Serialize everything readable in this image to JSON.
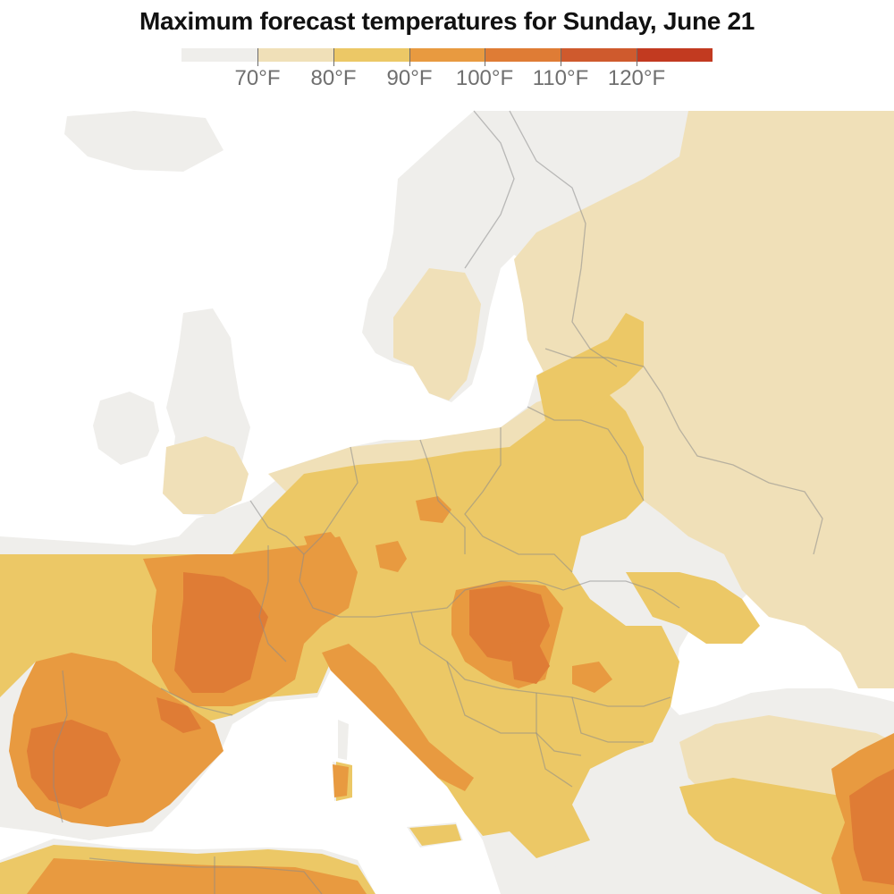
{
  "title": "Maximum forecast temperatures for Sunday, June 21",
  "legend": {
    "bins": [
      {
        "range": "below 70°F",
        "color": "#efeeeb"
      },
      {
        "range": "70–80°F",
        "color": "#f0e0b8"
      },
      {
        "range": "80–90°F",
        "color": "#ecc866"
      },
      {
        "range": "90–100°F",
        "color": "#e89a40"
      },
      {
        "range": "100–110°F",
        "color": "#df7c35"
      },
      {
        "range": "110–120°F",
        "color": "#cf5a2d"
      },
      {
        "range": "120°F and above",
        "color": "#c23a20"
      }
    ],
    "labels": [
      "70°F",
      "80°F",
      "90°F",
      "100°F",
      "110°F",
      "120°F"
    ]
  },
  "map": {
    "region": "Europe, North Africa and Western Russia",
    "colors": {
      "sea": "#ffffff",
      "border": "#8a8a8a"
    }
  }
}
